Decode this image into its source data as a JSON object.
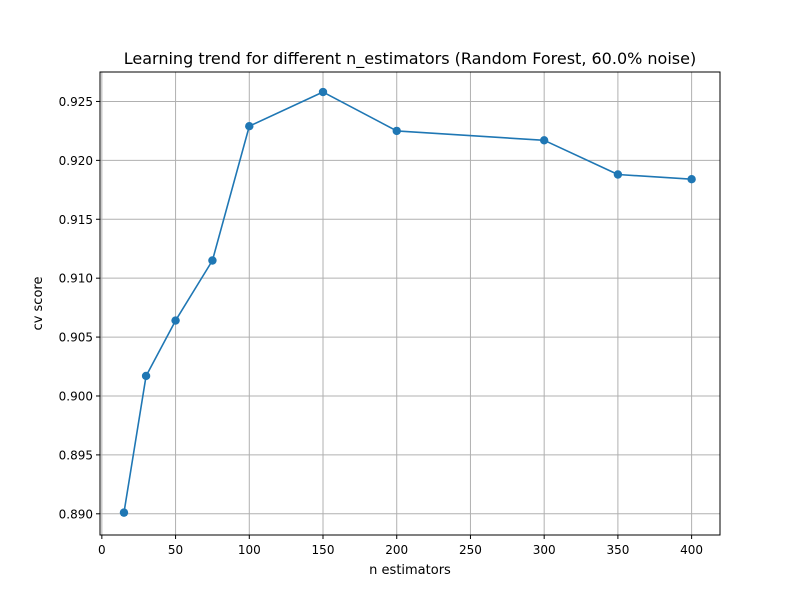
{
  "chart_data": {
    "type": "line",
    "title": "Learning trend for different n_estimators (Random Forest, 60.0% noise)",
    "xlabel": "n estimators",
    "ylabel": "cv score",
    "x": [
      15,
      30,
      50,
      75,
      100,
      150,
      200,
      300,
      350,
      400
    ],
    "series": [
      {
        "values": [
          0.8901,
          0.9017,
          0.9064,
          0.9115,
          0.9229,
          0.9258,
          0.9225,
          0.9217,
          0.9188,
          0.9184
        ],
        "color": "#1f77b4",
        "marker": "circle"
      }
    ],
    "xlim": [
      -1.25,
      419.25
    ],
    "ylim": [
      0.8882,
      0.9275
    ],
    "xticks": [
      0,
      50,
      100,
      150,
      200,
      250,
      300,
      350,
      400
    ],
    "xtick_labels": [
      "0",
      "50",
      "100",
      "150",
      "200",
      "250",
      "300",
      "350",
      "400"
    ],
    "yticks": [
      0.89,
      0.895,
      0.9,
      0.905,
      0.91,
      0.915,
      0.92,
      0.925
    ],
    "ytick_labels": [
      "0.890",
      "0.895",
      "0.900",
      "0.905",
      "0.910",
      "0.915",
      "0.920",
      "0.925"
    ],
    "grid": true,
    "grid_color": "#b0b0b0",
    "legend": false
  }
}
